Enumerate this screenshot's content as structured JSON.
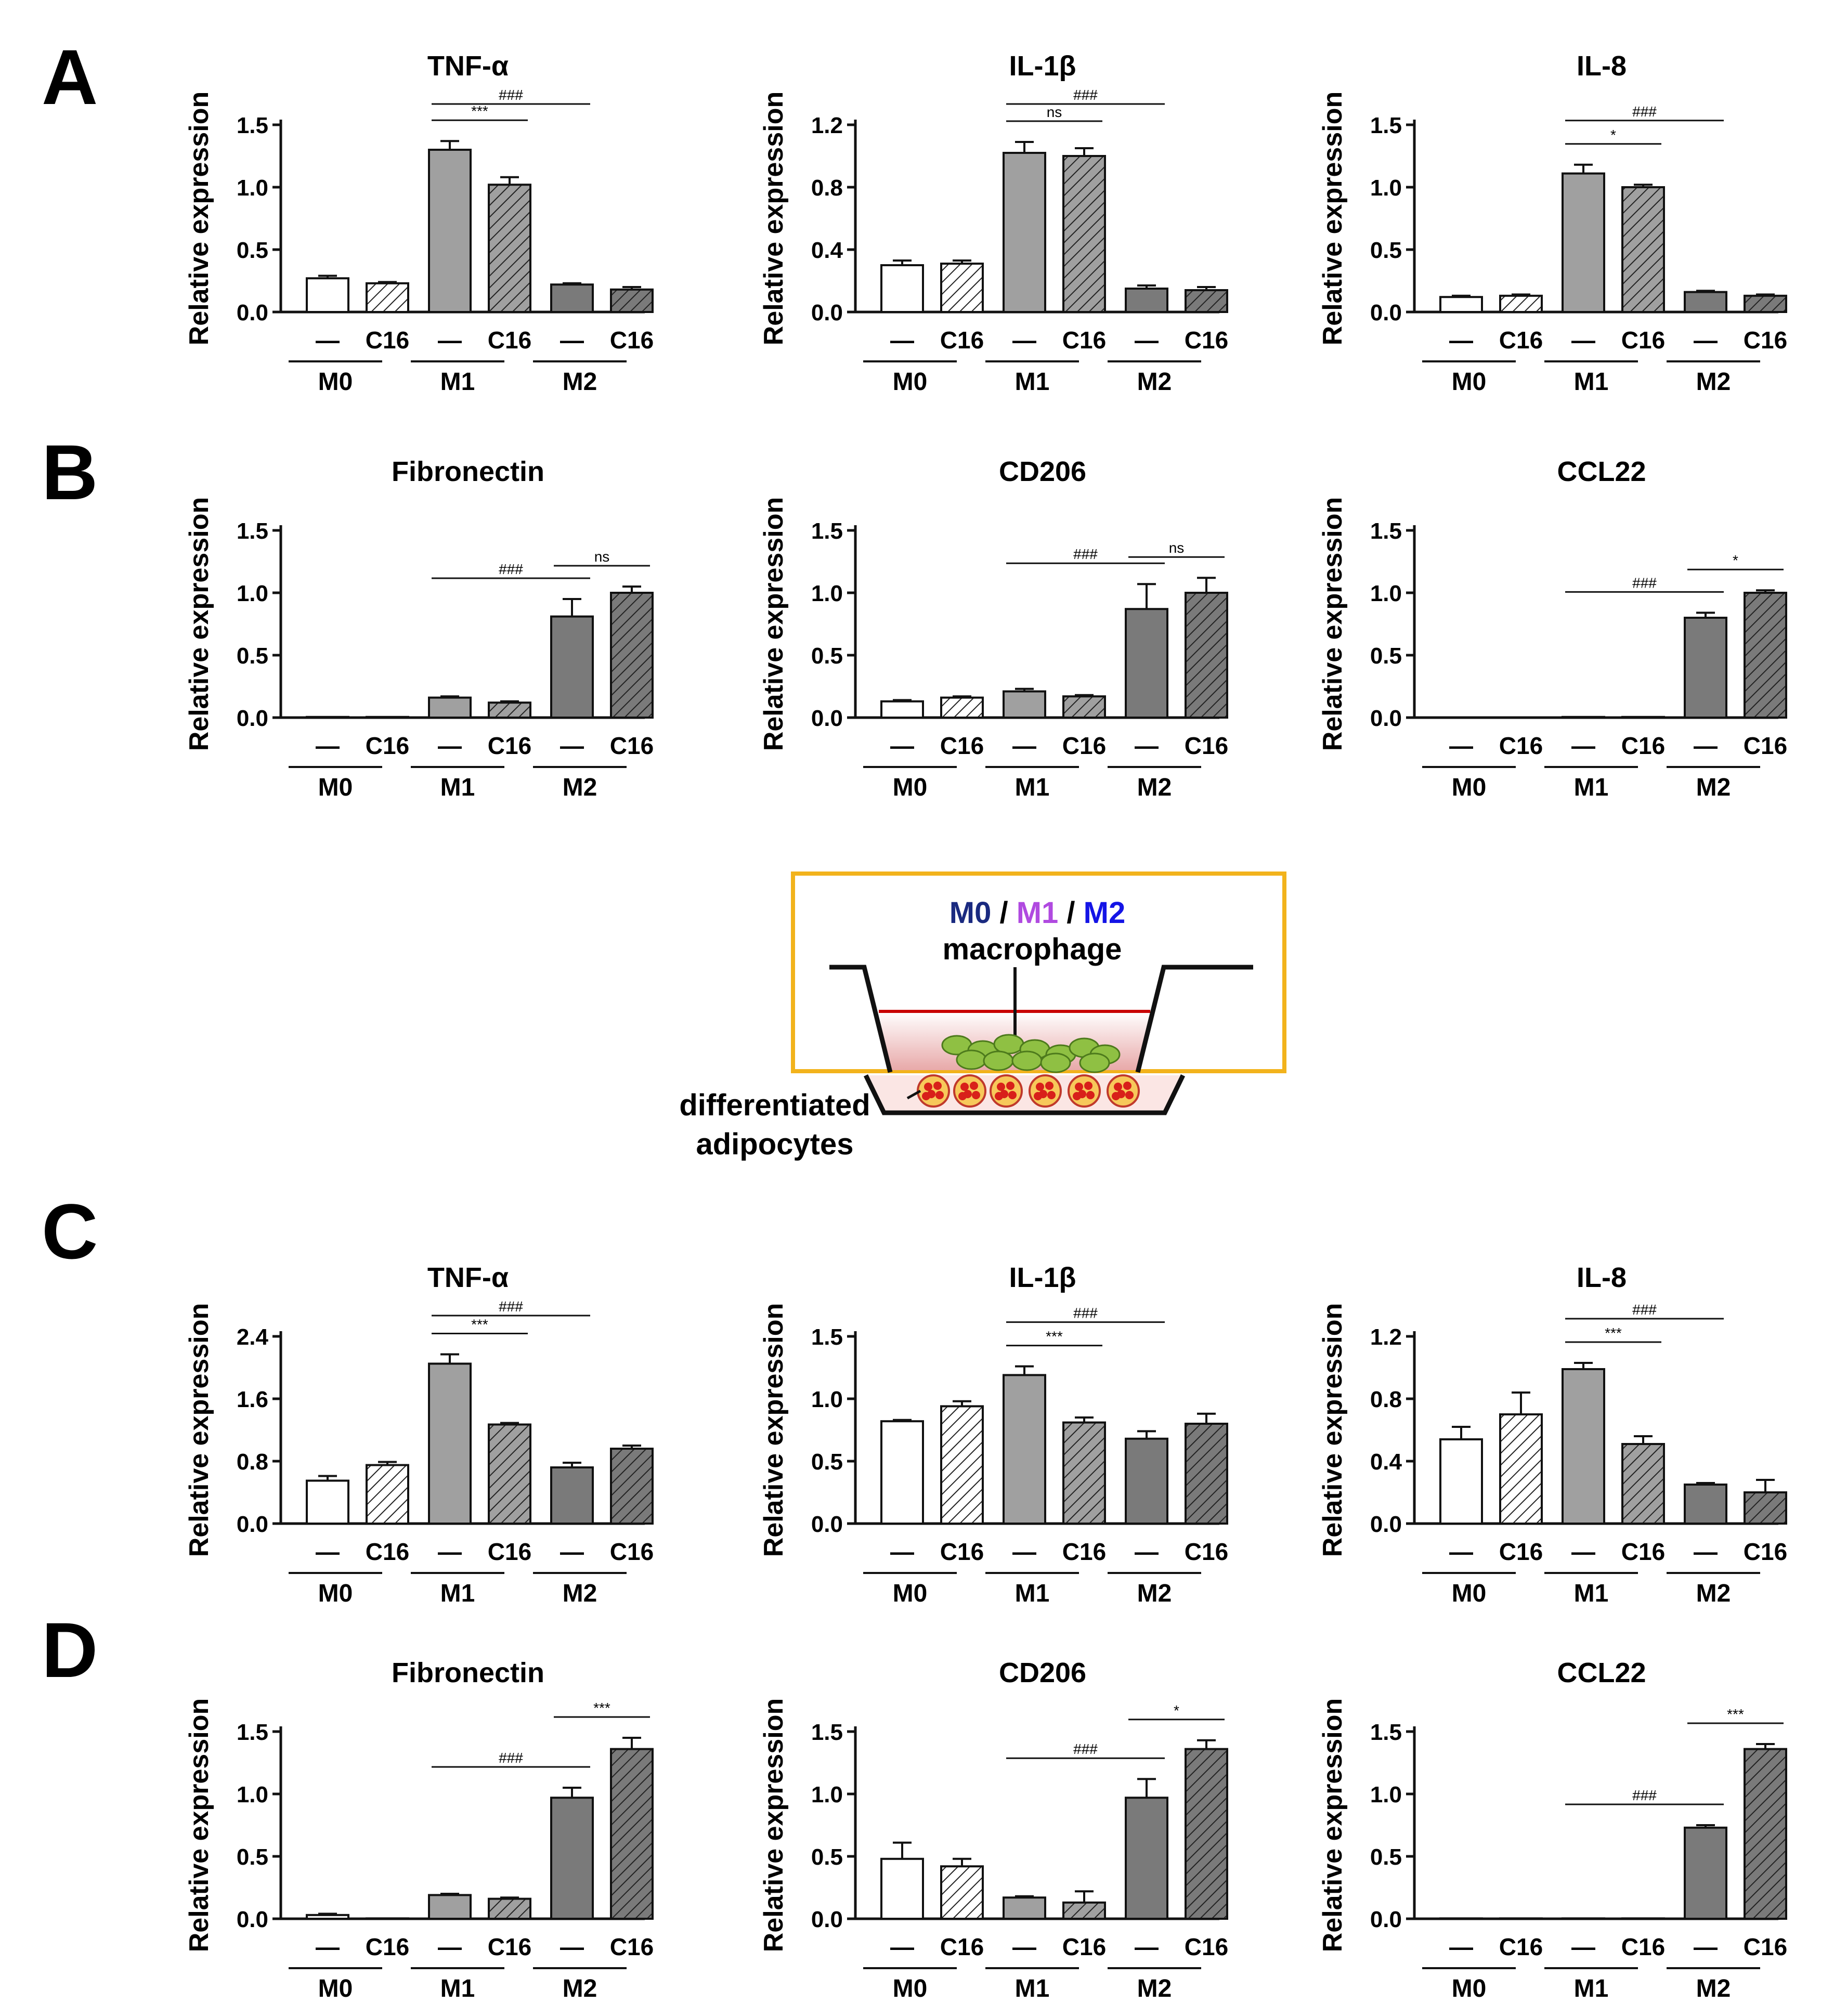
{
  "rows": [
    {
      "panel": "A",
      "charts": [
        {
          "title": "TNF-α",
          "y_axis_label": "Relative expression",
          "chart_data": {
            "type": "bar",
            "ylim": [
              0,
              1.5
            ],
            "ticks": [
              "0.0",
              "0.5",
              "1.0",
              "1.5"
            ],
            "values": [
              0.27,
              0.23,
              1.3,
              1.02,
              0.22,
              0.18
            ],
            "errors": [
              0.02,
              0.01,
              0.07,
              0.06,
              0.01,
              0.02
            ],
            "annotations": [
              {
                "text": "***",
                "from": 2,
                "to": 3
              },
              {
                "text": "###",
                "from": 2,
                "to": 4
              }
            ]
          }
        },
        {
          "title": "IL-1β",
          "y_axis_label": "Relative expression",
          "chart_data": {
            "type": "bar",
            "ylim": [
              0,
              1.2
            ],
            "ticks": [
              "0.0",
              "0.4",
              "0.8",
              "1.2"
            ],
            "values": [
              0.3,
              0.31,
              1.02,
              1.0,
              0.15,
              0.14
            ],
            "errors": [
              0.03,
              0.02,
              0.07,
              0.05,
              0.02,
              0.02
            ],
            "annotations": [
              {
                "text": "ns",
                "from": 2,
                "to": 3
              },
              {
                "text": "###",
                "from": 2,
                "to": 4
              }
            ]
          }
        },
        {
          "title": "IL-8",
          "y_axis_label": "Relative expression",
          "chart_data": {
            "type": "bar",
            "ylim": [
              0,
              1.5
            ],
            "ticks": [
              "0.0",
              "0.5",
              "1.0",
              "1.5"
            ],
            "values": [
              0.12,
              0.13,
              1.11,
              1.0,
              0.16,
              0.13
            ],
            "errors": [
              0.01,
              0.01,
              0.07,
              0.02,
              0.01,
              0.01
            ],
            "annotations": [
              {
                "text": "*",
                "from": 2,
                "to": 3
              },
              {
                "text": "###",
                "from": 2,
                "to": 4
              }
            ]
          }
        }
      ]
    },
    {
      "panel": "B",
      "charts": [
        {
          "title": "Fibronectin",
          "y_axis_label": "Relative expression",
          "chart_data": {
            "type": "bar",
            "ylim": [
              0,
              1.5
            ],
            "ticks": [
              "0.0",
              "0.5",
              "1.0",
              "1.5"
            ],
            "values": [
              0.005,
              0.005,
              0.16,
              0.12,
              0.81,
              1.0
            ],
            "errors": [
              0.0,
              0.0,
              0.01,
              0.01,
              0.14,
              0.05
            ],
            "annotations": [
              {
                "text": "###",
                "from": 2,
                "to": 4
              },
              {
                "text": "ns",
                "from": 4,
                "to": 5
              }
            ]
          }
        },
        {
          "title": "CD206",
          "y_axis_label": "Relative expression",
          "chart_data": {
            "type": "bar",
            "ylim": [
              0,
              1.5
            ],
            "ticks": [
              "0.0",
              "0.5",
              "1.0",
              "1.5"
            ],
            "values": [
              0.13,
              0.16,
              0.21,
              0.17,
              0.87,
              1.0
            ],
            "errors": [
              0.01,
              0.01,
              0.02,
              0.01,
              0.2,
              0.12
            ],
            "annotations": [
              {
                "text": "###",
                "from": 2,
                "to": 4
              },
              {
                "text": "ns",
                "from": 4,
                "to": 5
              }
            ]
          }
        },
        {
          "title": "CCL22",
          "y_axis_label": "Relative expression",
          "chart_data": {
            "type": "bar",
            "ylim": [
              0,
              1.5
            ],
            "ticks": [
              "0.0",
              "0.5",
              "1.0",
              "1.5"
            ],
            "values": [
              0.002,
              0.002,
              0.005,
              0.005,
              0.8,
              1.0
            ],
            "errors": [
              0.0,
              0.0,
              0.0,
              0.0,
              0.04,
              0.02
            ],
            "annotations": [
              {
                "text": "###",
                "from": 2,
                "to": 4
              },
              {
                "text": "*",
                "from": 4,
                "to": 5
              }
            ]
          }
        }
      ]
    },
    {
      "panel": "C",
      "charts": [
        {
          "title": "TNF-α",
          "y_axis_label": "Relative expression",
          "chart_data": {
            "type": "bar",
            "ylim": [
              0,
              2.4
            ],
            "ticks": [
              "0.0",
              "0.8",
              "1.6",
              "2.4"
            ],
            "values": [
              0.55,
              0.75,
              2.05,
              1.27,
              0.72,
              0.96
            ],
            "errors": [
              0.06,
              0.04,
              0.12,
              0.02,
              0.06,
              0.04
            ],
            "annotations": [
              {
                "text": "***",
                "from": 2,
                "to": 3
              },
              {
                "text": "###",
                "from": 2,
                "to": 4
              }
            ]
          }
        },
        {
          "title": "IL-1β",
          "y_axis_label": "Relative expression",
          "chart_data": {
            "type": "bar",
            "ylim": [
              0,
              1.5
            ],
            "ticks": [
              "0.0",
              "0.5",
              "1.0",
              "1.5"
            ],
            "values": [
              0.82,
              0.94,
              1.19,
              0.81,
              0.68,
              0.8
            ],
            "errors": [
              0.01,
              0.04,
              0.07,
              0.04,
              0.06,
              0.08
            ],
            "annotations": [
              {
                "text": "***",
                "from": 2,
                "to": 3
              },
              {
                "text": "###",
                "from": 2,
                "to": 4
              }
            ]
          }
        },
        {
          "title": "IL-8",
          "y_axis_label": "Relative expression",
          "chart_data": {
            "type": "bar",
            "ylim": [
              0,
              1.2
            ],
            "ticks": [
              "0.0",
              "0.4",
              "0.8",
              "1.2"
            ],
            "values": [
              0.54,
              0.7,
              0.99,
              0.51,
              0.25,
              0.2
            ],
            "errors": [
              0.08,
              0.14,
              0.04,
              0.05,
              0.01,
              0.08
            ],
            "annotations": [
              {
                "text": "***",
                "from": 2,
                "to": 3
              },
              {
                "text": "###",
                "from": 2,
                "to": 4
              }
            ]
          }
        }
      ]
    },
    {
      "panel": "D",
      "charts": [
        {
          "title": "Fibronectin",
          "y_axis_label": "Relative expression",
          "chart_data": {
            "type": "bar",
            "ylim": [
              0,
              1.5
            ],
            "ticks": [
              "0.0",
              "0.5",
              "1.0",
              "1.5"
            ],
            "values": [
              0.03,
              0.003,
              0.19,
              0.16,
              0.97,
              1.36
            ],
            "errors": [
              0.01,
              0.0,
              0.01,
              0.01,
              0.08,
              0.09
            ],
            "annotations": [
              {
                "text": "###",
                "from": 2,
                "to": 4
              },
              {
                "text": "***",
                "from": 4,
                "to": 5
              }
            ]
          }
        },
        {
          "title": "CD206",
          "y_axis_label": "Relative expression",
          "chart_data": {
            "type": "bar",
            "ylim": [
              0,
              1.5
            ],
            "ticks": [
              "0.0",
              "0.5",
              "1.0",
              "1.5"
            ],
            "values": [
              0.48,
              0.42,
              0.17,
              0.13,
              0.97,
              1.36
            ],
            "errors": [
              0.13,
              0.06,
              0.01,
              0.09,
              0.15,
              0.07
            ],
            "annotations": [
              {
                "text": "###",
                "from": 2,
                "to": 4
              },
              {
                "text": "*",
                "from": 4,
                "to": 5
              }
            ]
          }
        },
        {
          "title": "CCL22",
          "y_axis_label": "Relative expression",
          "chart_data": {
            "type": "bar",
            "ylim": [
              0,
              1.5
            ],
            "ticks": [
              "0.0",
              "0.5",
              "1.0",
              "1.5"
            ],
            "values": [
              0.003,
              0.003,
              0.003,
              0.003,
              0.73,
              1.36
            ],
            "errors": [
              0.0,
              0.0,
              0.0,
              0.0,
              0.02,
              0.04
            ],
            "annotations": [
              {
                "text": "###",
                "from": 2,
                "to": 4
              },
              {
                "text": "***",
                "from": 4,
                "to": 5
              }
            ]
          }
        }
      ]
    }
  ],
  "treatment_labels": [
    "—",
    "C16",
    "—",
    "C16",
    "—",
    "C16"
  ],
  "group_labels": [
    "M0",
    "M1",
    "M2"
  ],
  "bar_fills": [
    "white",
    "white-hatched",
    "light-gray",
    "light-gray-hatched",
    "dark-gray",
    "dark-gray-hatched"
  ],
  "colors": {
    "light_gray": "#a0a0a0",
    "dark_gray": "#7a7a7a",
    "box_border": "#f2b31c",
    "m0": "#1a2a80",
    "m1": "#b04ae0",
    "m2": "#1414e6",
    "medium_line": "#c80000",
    "cell_green": "#8fc043",
    "adipocyte_red": "#d8201a"
  },
  "schematic": {
    "m0": "M0",
    "sep1": " / ",
    "m1": "M1",
    "sep2": " / ",
    "m2": "M2",
    "macrophage": "macrophage",
    "adipocyte_line1": "differentiated",
    "adipocyte_line2": "adipocytes"
  }
}
